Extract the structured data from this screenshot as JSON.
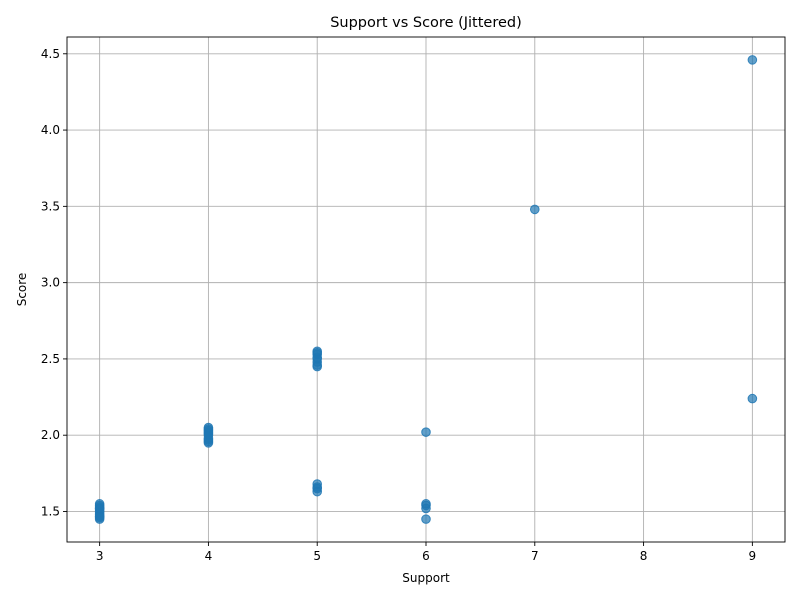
{
  "chart_data": {
    "type": "scatter",
    "title": "Support vs Score (Jittered)",
    "xlabel": "Support",
    "ylabel": "Score",
    "xlim": [
      2.7,
      9.3
    ],
    "ylim": [
      1.3,
      4.61
    ],
    "xticks": [
      3,
      4,
      5,
      6,
      7,
      8,
      9
    ],
    "xtick_labels": [
      "3",
      "4",
      "5",
      "6",
      "7",
      "8",
      "9"
    ],
    "yticks": [
      1.5,
      2.0,
      2.5,
      3.0,
      3.5,
      4.0,
      4.5
    ],
    "ytick_labels": [
      "1.5",
      "2.0",
      "2.5",
      "3.0",
      "3.5",
      "4.0",
      "4.5"
    ],
    "grid": true,
    "color": "#1f77b4",
    "series": [
      {
        "points": [
          [
            3,
            1.45
          ],
          [
            3,
            1.46
          ],
          [
            3,
            1.47
          ],
          [
            3,
            1.48
          ],
          [
            3,
            1.49
          ],
          [
            3,
            1.5
          ],
          [
            3,
            1.51
          ],
          [
            3,
            1.52
          ],
          [
            3,
            1.53
          ],
          [
            3,
            1.54
          ],
          [
            3,
            1.55
          ],
          [
            3,
            1.47
          ],
          [
            3,
            1.52
          ],
          [
            4,
            1.95
          ],
          [
            4,
            1.96
          ],
          [
            4,
            1.97
          ],
          [
            4,
            1.98
          ],
          [
            4,
            2.0
          ],
          [
            4,
            2.01
          ],
          [
            4,
            2.02
          ],
          [
            4,
            2.03
          ],
          [
            4,
            2.04
          ],
          [
            4,
            2.05
          ],
          [
            5,
            2.45
          ],
          [
            5,
            2.46
          ],
          [
            5,
            2.48
          ],
          [
            5,
            2.5
          ],
          [
            5,
            2.51
          ],
          [
            5,
            2.53
          ],
          [
            5,
            2.54
          ],
          [
            5,
            2.55
          ],
          [
            5,
            1.63
          ],
          [
            5,
            1.65
          ],
          [
            5,
            1.66
          ],
          [
            5,
            1.68
          ],
          [
            6,
            2.02
          ],
          [
            6,
            1.52
          ],
          [
            6,
            1.54
          ],
          [
            6,
            1.55
          ],
          [
            6,
            1.45
          ],
          [
            7,
            3.48
          ],
          [
            9,
            4.46
          ],
          [
            9,
            2.24
          ]
        ]
      }
    ]
  }
}
